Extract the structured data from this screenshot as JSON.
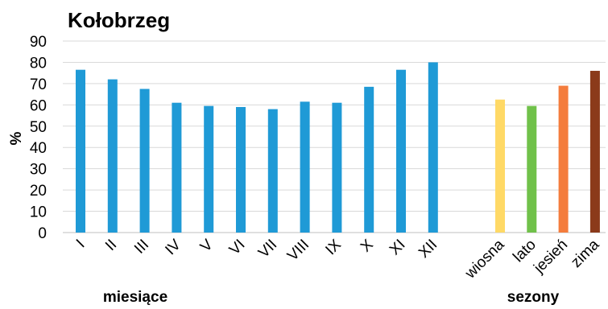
{
  "chart_data": [
    {
      "type": "bar",
      "title": "Kołobrzeg",
      "ylabel": "%",
      "xlabel": "miesiące",
      "ylim": [
        0,
        90
      ],
      "y_ticks": [
        "0",
        "10",
        "20",
        "30",
        "40",
        "50",
        "60",
        "70",
        "80",
        "90"
      ],
      "grid": true,
      "categories": [
        "I",
        "II",
        "III",
        "IV",
        "V",
        "VI",
        "VII",
        "VIII",
        "IX",
        "X",
        "XI",
        "XII"
      ],
      "values": [
        76.5,
        72,
        67.5,
        61,
        59.5,
        59,
        58,
        61.5,
        61,
        68.5,
        76.5,
        80
      ],
      "colors": [
        "#1f9ad6",
        "#1f9ad6",
        "#1f9ad6",
        "#1f9ad6",
        "#1f9ad6",
        "#1f9ad6",
        "#1f9ad6",
        "#1f9ad6",
        "#1f9ad6",
        "#1f9ad6",
        "#1f9ad6",
        "#1f9ad6"
      ]
    },
    {
      "type": "bar",
      "xlabel": "sezony",
      "categories": [
        "wiosna",
        "lato",
        "jesień",
        "zima"
      ],
      "values": [
        62.5,
        59.5,
        69,
        76
      ],
      "colors": [
        "#ffd966",
        "#70c14a",
        "#f47c3c",
        "#8b3a1a"
      ]
    }
  ]
}
